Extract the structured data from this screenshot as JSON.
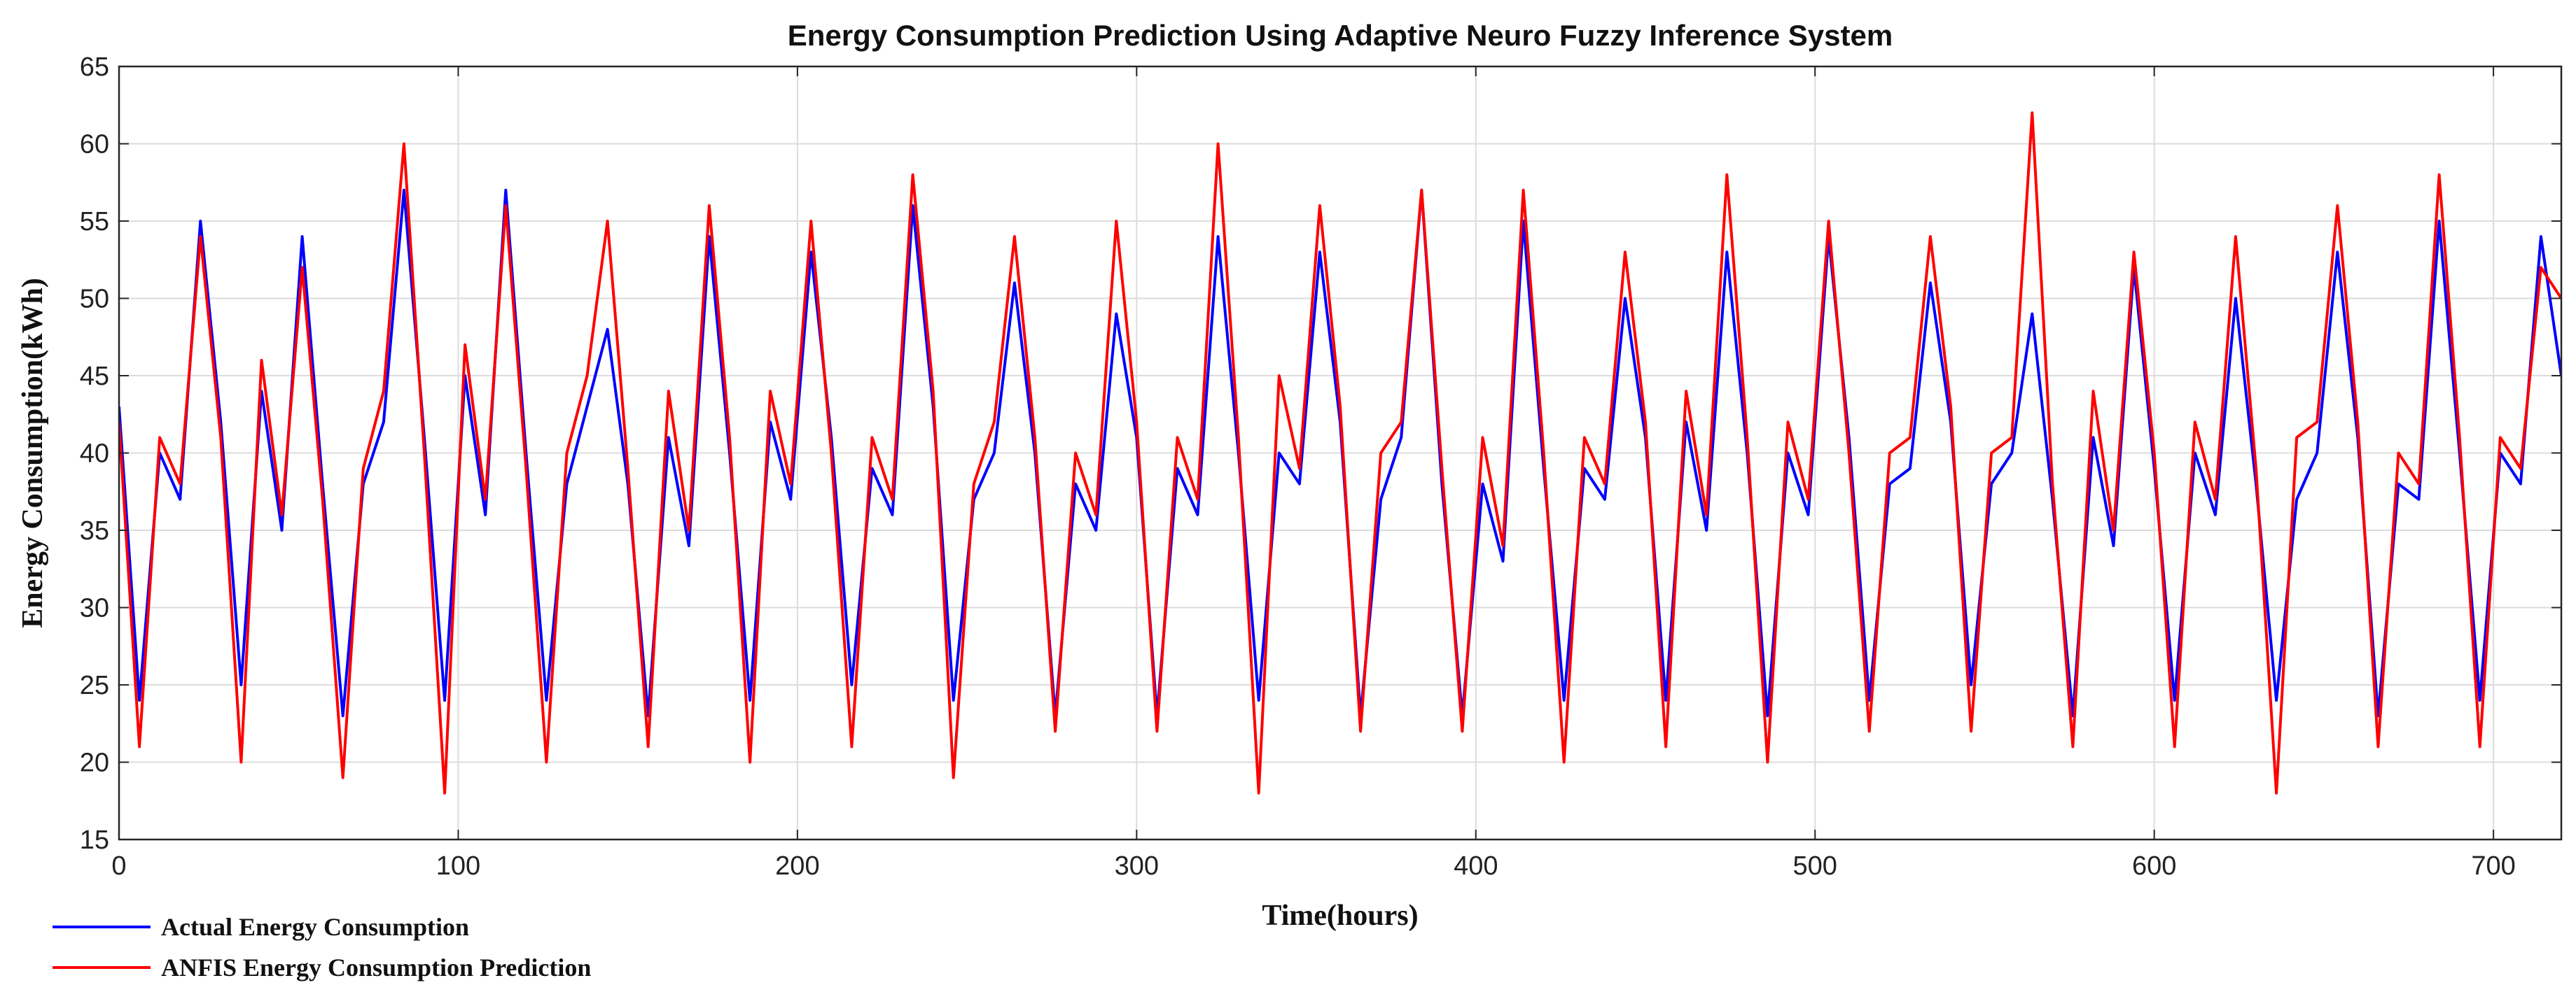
{
  "chart_data": {
    "type": "line",
    "title": "Energy Consumption Prediction Using Adaptive Neuro Fuzzy Inference System",
    "xlabel": "Time(hours)",
    "ylabel": "Energy Consumption(kWh)",
    "xlim": [
      0,
      720
    ],
    "ylim": [
      15,
      65
    ],
    "xticks": [
      0,
      100,
      200,
      300,
      400,
      500,
      600,
      700
    ],
    "yticks": [
      15,
      20,
      25,
      30,
      35,
      40,
      45,
      50,
      55,
      60,
      65
    ],
    "grid": true,
    "legend_position": "bottom-left, outside axes",
    "series": [
      {
        "name": "Actual Energy Consumption",
        "color": "#0000ff",
        "x": [
          0,
          6,
          12,
          18,
          24,
          30,
          36,
          42,
          48,
          54,
          60,
          66,
          72,
          78,
          84,
          90,
          96,
          102,
          108,
          114,
          120,
          126,
          132,
          138,
          144,
          150,
          156,
          162,
          168,
          174,
          180,
          186,
          192,
          198,
          204,
          210,
          216,
          222,
          228,
          234,
          240,
          246,
          252,
          258,
          264,
          270,
          276,
          282,
          288,
          294,
          300,
          306,
          312,
          318,
          324,
          330,
          336,
          342,
          348,
          354,
          360,
          366,
          372,
          378,
          384,
          390,
          396,
          402,
          408,
          414,
          420,
          426,
          432,
          438,
          444,
          450,
          456,
          462,
          468,
          474,
          480,
          486,
          492,
          498,
          504,
          510,
          516,
          522,
          528,
          534,
          540,
          546,
          552,
          558,
          564,
          570,
          576,
          582,
          588,
          594,
          600,
          606,
          612,
          618,
          624,
          630,
          636,
          642,
          648,
          654,
          660,
          666,
          672,
          678,
          684,
          690,
          696,
          702,
          708,
          714,
          720
        ],
        "values": [
          43,
          24,
          40,
          37,
          55,
          42,
          25,
          44,
          35,
          54,
          38,
          23,
          38,
          42,
          57,
          41,
          24,
          45,
          36,
          57,
          40,
          24,
          38,
          43,
          48,
          38,
          23,
          41,
          34,
          54,
          40,
          24,
          42,
          37,
          53,
          41,
          25,
          39,
          36,
          56,
          43,
          24,
          37,
          40,
          51,
          40,
          23,
          38,
          35,
          49,
          41,
          23,
          39,
          36,
          54,
          40,
          24,
          40,
          38,
          53,
          42,
          23,
          37,
          41,
          57,
          38,
          23,
          38,
          33,
          55,
          39,
          24,
          39,
          37,
          50,
          41,
          24,
          42,
          35,
          53,
          40,
          23,
          40,
          36,
          54,
          41,
          24,
          38,
          39,
          51,
          42,
          25,
          38,
          40,
          49,
          37,
          23,
          41,
          34,
          52,
          39,
          24,
          40,
          36,
          50,
          38,
          24,
          37,
          40,
          53,
          41,
          23,
          38,
          37,
          55,
          40,
          24,
          40,
          38,
          54,
          45
        ]
      },
      {
        "name": "ANFIS Energy Consumption  Prediction",
        "color": "#ff0000",
        "x": [
          0,
          6,
          12,
          18,
          24,
          30,
          36,
          42,
          48,
          54,
          60,
          66,
          72,
          78,
          84,
          90,
          96,
          102,
          108,
          114,
          120,
          126,
          132,
          138,
          144,
          150,
          156,
          162,
          168,
          174,
          180,
          186,
          192,
          198,
          204,
          210,
          216,
          222,
          228,
          234,
          240,
          246,
          252,
          258,
          264,
          270,
          276,
          282,
          288,
          294,
          300,
          306,
          312,
          318,
          324,
          330,
          336,
          342,
          348,
          354,
          360,
          366,
          372,
          378,
          384,
          390,
          396,
          402,
          408,
          414,
          420,
          426,
          432,
          438,
          444,
          450,
          456,
          462,
          468,
          474,
          480,
          486,
          492,
          498,
          504,
          510,
          516,
          522,
          528,
          534,
          540,
          546,
          552,
          558,
          564,
          570,
          576,
          582,
          588,
          594,
          600,
          606,
          612,
          618,
          624,
          630,
          636,
          642,
          648,
          654,
          660,
          666,
          672,
          678,
          684,
          690,
          696,
          702,
          708,
          714,
          720
        ],
        "values": [
          42,
          21,
          41,
          38,
          54,
          41,
          20,
          46,
          36,
          52,
          37,
          19,
          39,
          44,
          60,
          40,
          18,
          47,
          37,
          56,
          39,
          20,
          40,
          45,
          55,
          39,
          21,
          44,
          35,
          56,
          41,
          20,
          44,
          38,
          55,
          40,
          21,
          41,
          37,
          58,
          44,
          19,
          38,
          42,
          54,
          41,
          22,
          40,
          36,
          55,
          42,
          22,
          41,
          37,
          60,
          41,
          18,
          45,
          39,
          56,
          43,
          22,
          40,
          42,
          57,
          39,
          22,
          41,
          34,
          57,
          40,
          20,
          41,
          38,
          53,
          42,
          21,
          44,
          36,
          58,
          41,
          20,
          42,
          37,
          55,
          40,
          22,
          40,
          41,
          54,
          43,
          22,
          40,
          41,
          62,
          38,
          21,
          44,
          35,
          53,
          40,
          21,
          42,
          37,
          54,
          39,
          18,
          41,
          42,
          56,
          42,
          21,
          40,
          38,
          58,
          41,
          21,
          41,
          39,
          52,
          50
        ]
      }
    ]
  }
}
